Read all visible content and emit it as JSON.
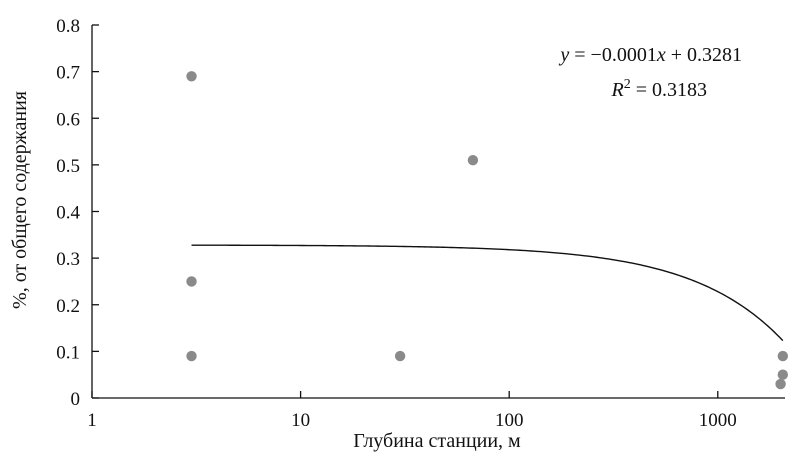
{
  "chart_data": {
    "type": "scatter",
    "title": "",
    "xlabel": "Глубина станции, м",
    "ylabel": "%, от общего содержания",
    "x_scale": "log",
    "xlim": [
      1,
      2100
    ],
    "ylim": [
      0,
      0.8
    ],
    "x_ticks": [
      1,
      10,
      100,
      1000
    ],
    "x_tick_labels": [
      "1",
      "10",
      "100",
      "1000"
    ],
    "y_ticks": [
      0,
      0.1,
      0.2,
      0.3,
      0.4,
      0.5,
      0.6,
      0.7,
      0.8
    ],
    "y_tick_labels": [
      "0",
      "0.1",
      "0.2",
      "0.3",
      "0.4",
      "0.5",
      "0.6",
      "0.7",
      "0.8"
    ],
    "grid": false,
    "points": [
      {
        "x": 3,
        "y": 0.69
      },
      {
        "x": 3,
        "y": 0.25
      },
      {
        "x": 3,
        "y": 0.09
      },
      {
        "x": 30,
        "y": 0.09
      },
      {
        "x": 67,
        "y": 0.51
      },
      {
        "x": 2050,
        "y": 0.09
      },
      {
        "x": 2050,
        "y": 0.05
      },
      {
        "x": 2000,
        "y": 0.03
      }
    ],
    "trendline": {
      "slope": -0.0001,
      "intercept": 0.3281,
      "x_from": 3,
      "x_to": 2050
    },
    "equation_text": "y = −0.0001x + 0.3281",
    "r2_text": "R² = 0.3183",
    "point_color": "#8a8a8a",
    "line_color": "#111111"
  }
}
